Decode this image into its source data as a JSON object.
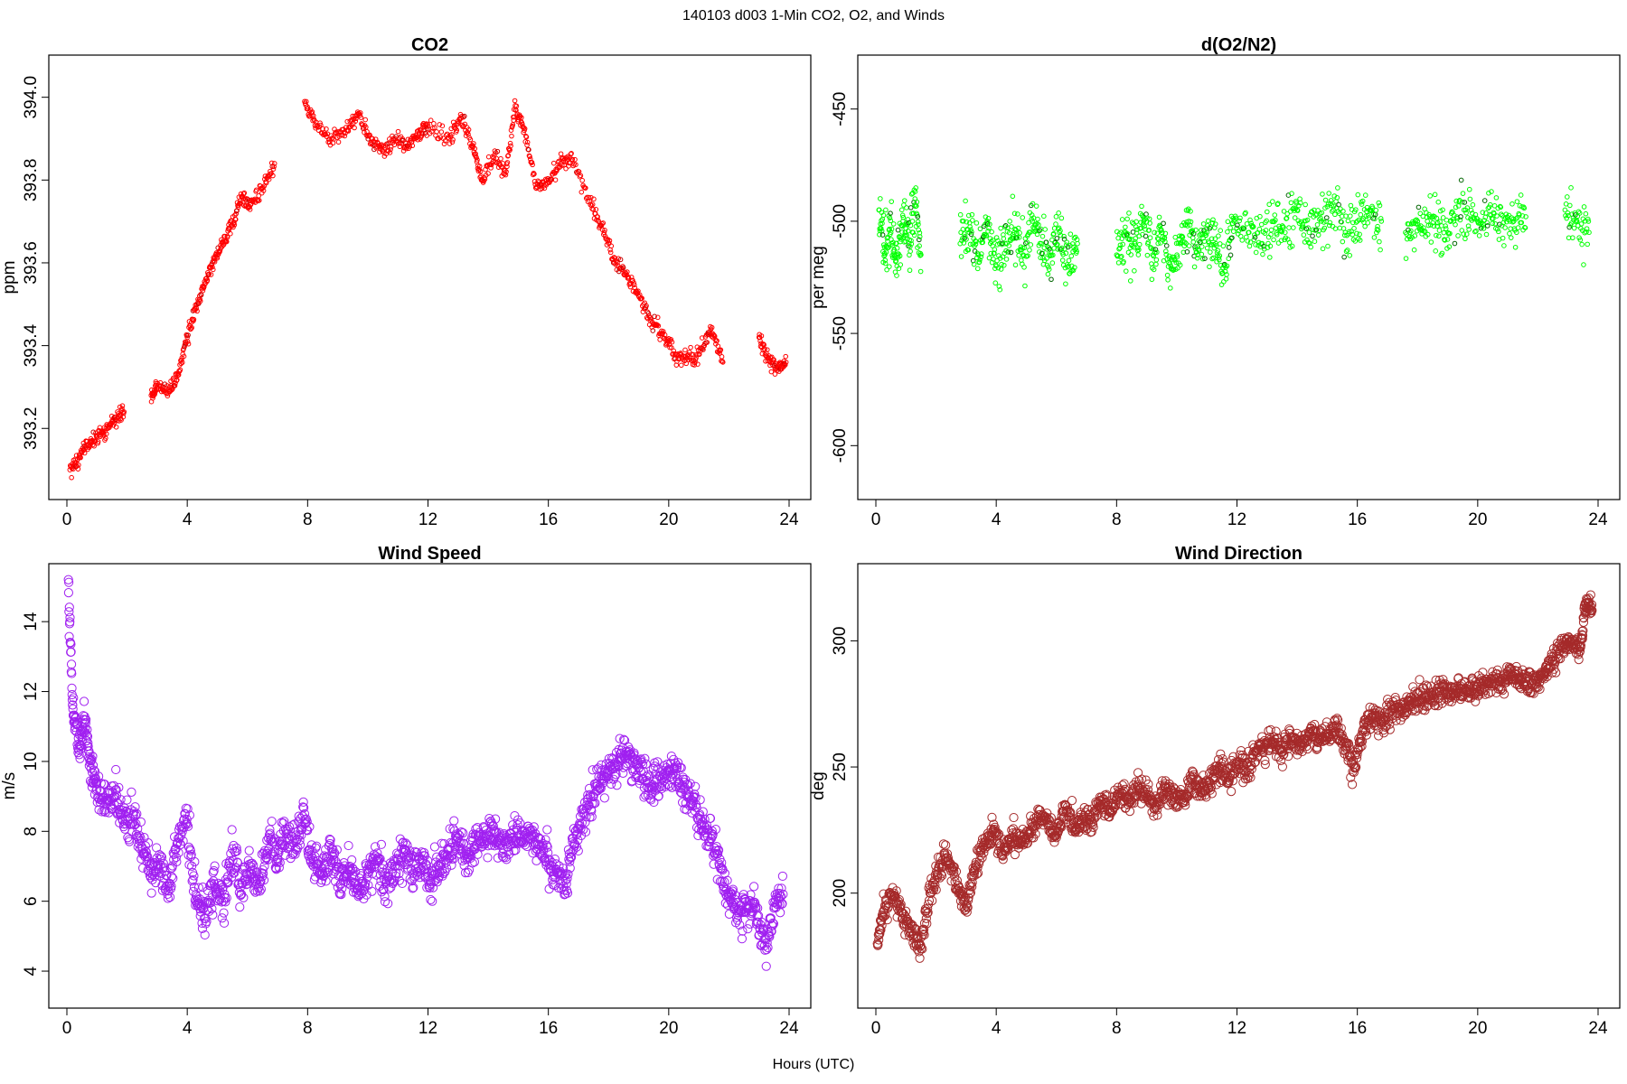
{
  "figure": {
    "title": "140103   d003   1-Min CO2, O2, and Winds",
    "xlabel": "Hours (UTC)"
  },
  "chart_data": [
    {
      "type": "scatter",
      "title": "CO2",
      "xlabel": "",
      "ylabel": "ppm",
      "xlim": [
        0,
        24
      ],
      "ylim": [
        393.05,
        394.08
      ],
      "xticks": [
        0,
        4,
        8,
        12,
        16,
        20,
        24
      ],
      "yticks": [
        393.2,
        393.4,
        393.6,
        393.8,
        394.0
      ],
      "ytick_labels": [
        "393.2",
        "393.4",
        "393.6",
        "393.8",
        "394.0"
      ],
      "marker_color": "#ff0000",
      "accent_color": "#c00000",
      "marker_size": "small",
      "x": [
        0.1,
        0.4,
        0.7,
        1.0,
        1.3,
        1.6,
        1.9,
        2.8,
        3.0,
        3.4,
        3.7,
        4.0,
        4.3,
        4.6,
        4.9,
        5.2,
        5.5,
        5.8,
        6.1,
        6.5,
        6.9,
        7.9,
        8.3,
        8.8,
        9.3,
        9.7,
        10.1,
        10.5,
        10.9,
        11.3,
        11.7,
        12.0,
        12.7,
        13.1,
        13.5,
        13.8,
        14.2,
        14.6,
        14.9,
        15.2,
        15.6,
        16.0,
        16.4,
        16.8,
        17.4,
        17.8,
        18.2,
        18.6,
        19.0,
        19.4,
        19.8,
        20.2,
        20.6,
        21.0,
        21.4,
        21.8,
        23.0,
        23.3,
        23.6,
        23.9
      ],
      "y": [
        393.1,
        393.13,
        393.16,
        393.18,
        393.2,
        393.22,
        393.24,
        393.28,
        393.3,
        393.29,
        393.33,
        393.42,
        393.49,
        393.55,
        393.61,
        393.65,
        393.69,
        393.76,
        393.74,
        393.78,
        393.84,
        393.99,
        393.93,
        393.9,
        393.92,
        393.96,
        393.89,
        393.87,
        393.9,
        393.88,
        393.91,
        393.93,
        393.9,
        393.95,
        393.88,
        393.8,
        393.86,
        393.82,
        393.98,
        393.92,
        393.78,
        393.8,
        393.84,
        393.85,
        393.74,
        393.68,
        393.6,
        393.57,
        393.52,
        393.46,
        393.43,
        393.38,
        393.37,
        393.38,
        393.44,
        393.36,
        393.42,
        393.37,
        393.34,
        393.36
      ]
    },
    {
      "type": "scatter",
      "title": "d(O2/N2)",
      "xlabel": "",
      "ylabel": "per meg",
      "xlim": [
        0,
        24
      ],
      "ylim": [
        -620,
        -430
      ],
      "xticks": [
        0,
        4,
        8,
        12,
        16,
        20,
        24
      ],
      "yticks": [
        -600,
        -550,
        -500,
        -450
      ],
      "ytick_labels": [
        "-600",
        "-550",
        "-500",
        "-450"
      ],
      "marker_color": "#00ff00",
      "accent_color": "#006400",
      "marker_size": "small",
      "x": [
        0.1,
        0.3,
        0.5,
        0.7,
        0.9,
        1.1,
        1.3,
        1.5,
        2.8,
        3.1,
        3.4,
        3.7,
        4.0,
        4.3,
        4.6,
        4.9,
        5.2,
        5.5,
        5.8,
        6.1,
        6.4,
        6.7,
        8.0,
        8.3,
        8.6,
        8.9,
        9.2,
        9.5,
        9.8,
        10.1,
        10.4,
        10.7,
        11.0,
        11.3,
        11.6,
        11.9,
        12.4,
        12.8,
        13.2,
        13.6,
        14.0,
        14.4,
        14.8,
        15.2,
        15.6,
        16.0,
        16.4,
        16.8,
        17.6,
        18.0,
        18.4,
        18.8,
        19.2,
        19.6,
        20.0,
        20.4,
        20.8,
        21.2,
        21.6,
        22.9,
        23.3,
        23.7
      ],
      "y": [
        -495,
        -515,
        -505,
        -520,
        -500,
        -510,
        -490,
        -515,
        -510,
        -505,
        -515,
        -500,
        -520,
        -510,
        -505,
        -515,
        -500,
        -510,
        -515,
        -505,
        -520,
        -510,
        -515,
        -505,
        -510,
        -500,
        -515,
        -505,
        -520,
        -510,
        -500,
        -515,
        -505,
        -510,
        -520,
        -500,
        -505,
        -510,
        -500,
        -505,
        -495,
        -505,
        -500,
        -495,
        -505,
        -500,
        -495,
        -500,
        -505,
        -500,
        -498,
        -502,
        -500,
        -495,
        -500,
        -497,
        -502,
        -500,
        -498,
        -495,
        -500,
        -505
      ]
    },
    {
      "type": "scatter",
      "title": "Wind Speed",
      "xlabel": "",
      "ylabel": "m/s",
      "xlim": [
        0,
        24
      ],
      "ylim": [
        3.2,
        15.4
      ],
      "xticks": [
        0,
        4,
        8,
        12,
        16,
        20,
        24
      ],
      "yticks": [
        4,
        6,
        8,
        10,
        12,
        14
      ],
      "ytick_labels": [
        "4",
        "6",
        "8",
        "10",
        "12",
        "14"
      ],
      "marker_color": "#a020f0",
      "marker_size": "large",
      "x": [
        0.05,
        0.2,
        0.4,
        0.6,
        0.8,
        1.0,
        1.3,
        1.6,
        1.9,
        2.2,
        2.5,
        2.8,
        3.1,
        3.4,
        3.7,
        4.0,
        4.3,
        4.6,
        4.9,
        5.2,
        5.5,
        5.8,
        6.1,
        6.4,
        6.7,
        7.0,
        7.3,
        7.6,
        7.9,
        8.2,
        8.5,
        8.8,
        9.1,
        9.4,
        9.7,
        10.0,
        10.3,
        10.6,
        10.9,
        11.2,
        11.5,
        11.8,
        12.1,
        12.4,
        12.7,
        13.0,
        13.3,
        13.6,
        13.9,
        14.2,
        14.5,
        14.8,
        15.1,
        15.4,
        15.7,
        16.0,
        16.3,
        16.6,
        16.9,
        17.2,
        17.5,
        17.8,
        18.1,
        18.4,
        18.7,
        19.0,
        19.3,
        19.6,
        19.9,
        20.2,
        20.5,
        20.8,
        21.1,
        21.4,
        21.7,
        22.0,
        22.3,
        22.6,
        22.9,
        23.2,
        23.5,
        23.8
      ],
      "y": [
        15.2,
        11.5,
        10.5,
        11.2,
        9.8,
        9.2,
        8.8,
        9.0,
        8.2,
        8.5,
        7.5,
        6.8,
        7.2,
        6.5,
        7.8,
        8.2,
        6.0,
        5.5,
        6.5,
        6.0,
        7.5,
        6.2,
        7.0,
        6.5,
        7.8,
        7.2,
        8.0,
        7.5,
        8.5,
        7.0,
        6.8,
        7.5,
        6.5,
        7.0,
        6.2,
        6.8,
        7.2,
        6.5,
        7.0,
        7.5,
        6.8,
        7.2,
        6.5,
        7.0,
        7.5,
        7.8,
        7.2,
        7.6,
        7.8,
        8.0,
        7.5,
        7.8,
        7.9,
        7.8,
        7.6,
        7.2,
        6.8,
        6.5,
        8.0,
        8.5,
        9.0,
        9.5,
        9.8,
        10.1,
        10.2,
        9.8,
        9.4,
        9.5,
        9.6,
        9.8,
        9.2,
        8.8,
        8.2,
        7.8,
        7.2,
        6.2,
        5.6,
        5.8,
        5.8,
        4.6,
        5.8,
        6.2
      ]
    },
    {
      "type": "scatter",
      "title": "Wind Direction",
      "xlabel": "",
      "ylabel": "deg",
      "xlim": [
        0,
        24
      ],
      "ylim": [
        158,
        327
      ],
      "xticks": [
        0,
        4,
        8,
        12,
        16,
        20,
        24
      ],
      "yticks": [
        200,
        250,
        300
      ],
      "ytick_labels": [
        "200",
        "250",
        "300"
      ],
      "marker_color": "#a52a2a",
      "marker_size": "large",
      "x": [
        0.05,
        0.3,
        0.6,
        0.9,
        1.2,
        1.5,
        1.8,
        2.1,
        2.4,
        2.7,
        3.0,
        3.3,
        3.6,
        3.9,
        4.2,
        4.5,
        4.8,
        5.1,
        5.4,
        5.7,
        6.0,
        6.3,
        6.6,
        6.9,
        7.2,
        7.5,
        7.8,
        8.1,
        8.4,
        8.7,
        9.0,
        9.3,
        9.6,
        9.9,
        10.2,
        10.5,
        10.8,
        11.1,
        11.4,
        11.7,
        12.0,
        12.3,
        12.6,
        12.9,
        13.2,
        13.5,
        13.8,
        14.1,
        14.4,
        14.7,
        15.0,
        15.3,
        15.6,
        15.9,
        16.2,
        16.5,
        16.8,
        17.1,
        17.4,
        17.7,
        18.0,
        18.3,
        18.6,
        18.9,
        19.2,
        19.5,
        19.8,
        20.1,
        20.4,
        20.7,
        21.0,
        21.3,
        21.6,
        21.9,
        22.2,
        22.5,
        22.8,
        23.1,
        23.4,
        23.6,
        23.8
      ],
      "y": [
        180,
        195,
        200,
        190,
        185,
        178,
        200,
        210,
        214,
        205,
        195,
        210,
        220,
        225,
        215,
        222,
        220,
        224,
        230,
        228,
        222,
        235,
        225,
        230,
        228,
        238,
        232,
        240,
        236,
        243,
        238,
        234,
        242,
        238,
        236,
        245,
        240,
        244,
        250,
        246,
        252,
        248,
        256,
        258,
        260,
        256,
        262,
        258,
        264,
        262,
        262,
        266,
        258,
        250,
        265,
        270,
        268,
        272,
        272,
        274,
        276,
        278,
        279,
        280,
        279,
        281,
        280,
        282,
        284,
        284,
        286,
        285,
        284,
        283,
        286,
        292,
        298,
        300,
        296,
        315,
        312
      ]
    }
  ]
}
